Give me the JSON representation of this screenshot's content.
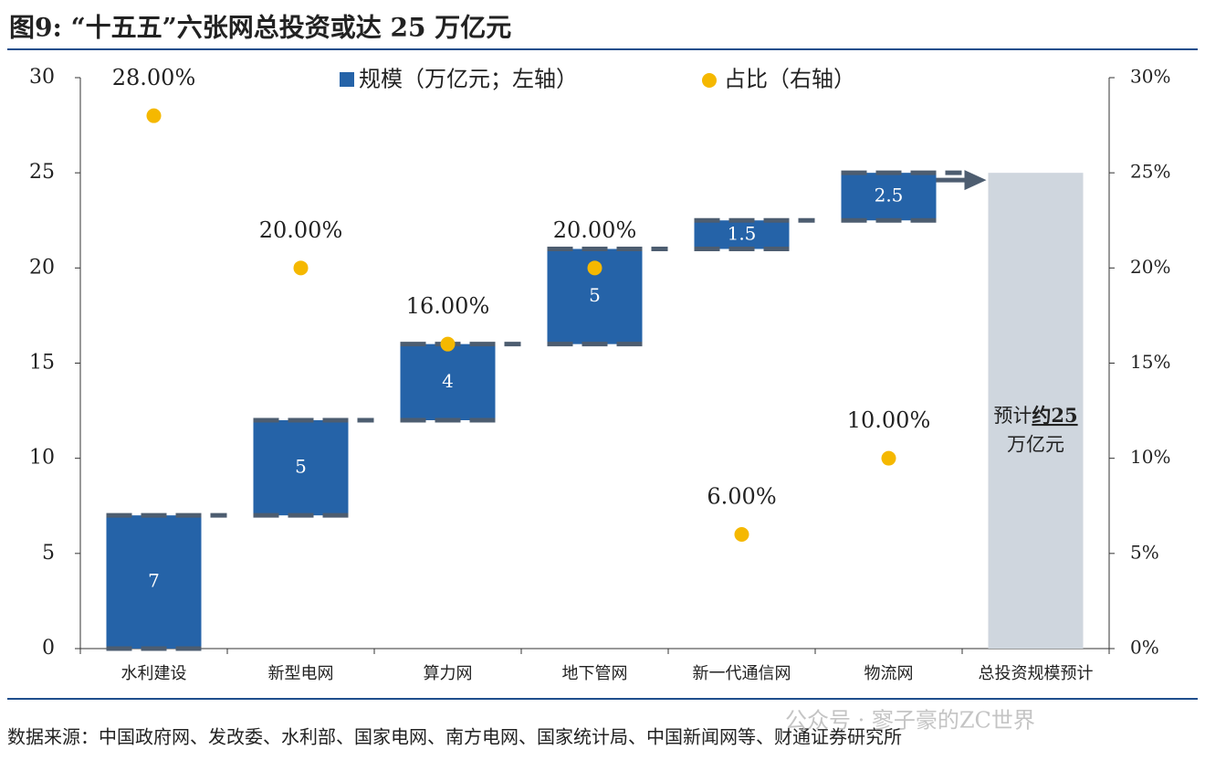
{
  "chart_data": {
    "type": "waterfall",
    "title": "图9: “十五五”六张网总投资或达 25 万亿元",
    "categories": [
      "水利建设",
      "新型电网",
      "算力网",
      "地下管网",
      "新一代通信网",
      "物流网",
      "总投资规模预计"
    ],
    "series": [
      {
        "name": "规模（万亿元；左轴）",
        "color": "#2563a8",
        "values": [
          7,
          5,
          4,
          5,
          1.5,
          2.5,
          null
        ]
      },
      {
        "name": "占比（右轴）",
        "color": "#f5b800",
        "axis": "y2",
        "values": [
          28,
          20,
          16,
          20,
          6,
          10,
          null
        ],
        "value_labels": [
          "28.00%",
          "20.00%",
          "16.00%",
          "20.00%",
          "6.00%",
          "10.00%",
          null
        ]
      }
    ],
    "total": {
      "value": 25,
      "color": "#cfd6de",
      "label_parts": [
        "预计",
        "约25",
        "万亿元"
      ]
    },
    "ylim": [
      0,
      30
    ],
    "yticks": [
      0,
      5,
      10,
      15,
      20,
      25,
      30
    ],
    "y2lim": [
      0,
      30
    ],
    "y2ticks": [
      {
        "value": 0,
        "label": "0%"
      },
      {
        "value": 5,
        "label": "5%"
      },
      {
        "value": 10,
        "label": "10%"
      },
      {
        "value": 15,
        "label": "15%"
      },
      {
        "value": 20,
        "label": "20%"
      },
      {
        "value": 25,
        "label": "25%"
      },
      {
        "value": 30,
        "label": "30%"
      }
    ],
    "source": "数据来源：中国政府网、发改委、水利部、国家电网、南方电网、国家统计局、中国新闻网等、财通证券研究所",
    "watermark": "公众号 · 寥子豪的ZC世界"
  }
}
